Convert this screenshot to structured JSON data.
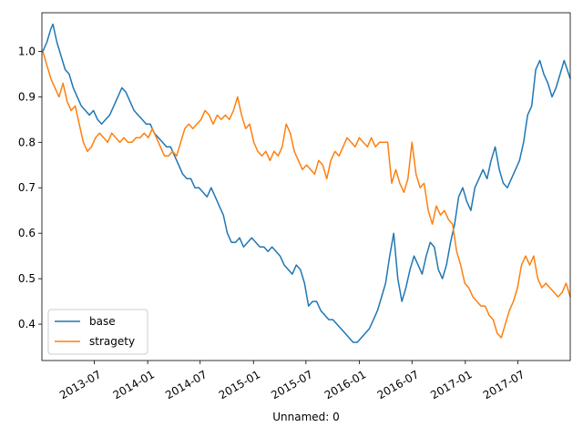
{
  "chart_data": {
    "type": "line",
    "title": "",
    "xlabel": "Unnamed: 0",
    "ylabel": "",
    "x_range": [
      "2013-01-01",
      "2017-12-29"
    ],
    "ylim": [
      0.32,
      1.085
    ],
    "grid": false,
    "legend": {
      "placement": "lower-left"
    },
    "x_ticks": [
      {
        "date": "2013-07-01",
        "label": "2013-07"
      },
      {
        "date": "2014-01-01",
        "label": "2014-01"
      },
      {
        "date": "2014-07-01",
        "label": "2014-07"
      },
      {
        "date": "2015-01-01",
        "label": "2015-01"
      },
      {
        "date": "2015-07-01",
        "label": "2015-07"
      },
      {
        "date": "2016-01-01",
        "label": "2016-01"
      },
      {
        "date": "2016-07-01",
        "label": "2016-07"
      },
      {
        "date": "2017-01-01",
        "label": "2017-01"
      },
      {
        "date": "2017-07-01",
        "label": "2017-07"
      }
    ],
    "y_ticks": [
      {
        "value": 0.4,
        "label": "0.4"
      },
      {
        "value": 0.5,
        "label": "0.5"
      },
      {
        "value": 0.6,
        "label": "0.6"
      },
      {
        "value": 0.7,
        "label": "0.7"
      },
      {
        "value": 0.8,
        "label": "0.8"
      },
      {
        "value": 0.9,
        "label": "0.9"
      },
      {
        "value": 1.0,
        "label": "1.0"
      }
    ],
    "series": [
      {
        "name": "base",
        "color": "#1f77b4",
        "points": [
          [
            "2013-01-04",
            1.0
          ],
          [
            "2013-01-18",
            1.02
          ],
          [
            "2013-02-01",
            1.05
          ],
          [
            "2013-02-08",
            1.06
          ],
          [
            "2013-02-22",
            1.02
          ],
          [
            "2013-03-08",
            0.99
          ],
          [
            "2013-03-22",
            0.96
          ],
          [
            "2013-04-05",
            0.95
          ],
          [
            "2013-04-19",
            0.92
          ],
          [
            "2013-05-03",
            0.9
          ],
          [
            "2013-05-17",
            0.88
          ],
          [
            "2013-05-31",
            0.87
          ],
          [
            "2013-06-14",
            0.86
          ],
          [
            "2013-06-28",
            0.87
          ],
          [
            "2013-07-12",
            0.85
          ],
          [
            "2013-07-26",
            0.84
          ],
          [
            "2013-08-09",
            0.85
          ],
          [
            "2013-08-23",
            0.86
          ],
          [
            "2013-09-06",
            0.88
          ],
          [
            "2013-09-20",
            0.9
          ],
          [
            "2013-10-04",
            0.92
          ],
          [
            "2013-10-18",
            0.91
          ],
          [
            "2013-11-01",
            0.89
          ],
          [
            "2013-11-15",
            0.87
          ],
          [
            "2013-11-29",
            0.86
          ],
          [
            "2013-12-13",
            0.85
          ],
          [
            "2013-12-27",
            0.84
          ],
          [
            "2014-01-10",
            0.84
          ],
          [
            "2014-01-24",
            0.82
          ],
          [
            "2014-02-07",
            0.81
          ],
          [
            "2014-02-21",
            0.8
          ],
          [
            "2014-03-07",
            0.79
          ],
          [
            "2014-03-21",
            0.79
          ],
          [
            "2014-04-04",
            0.77
          ],
          [
            "2014-04-18",
            0.75
          ],
          [
            "2014-05-02",
            0.73
          ],
          [
            "2014-05-16",
            0.72
          ],
          [
            "2014-05-30",
            0.72
          ],
          [
            "2014-06-13",
            0.7
          ],
          [
            "2014-06-27",
            0.7
          ],
          [
            "2014-07-11",
            0.69
          ],
          [
            "2014-07-25",
            0.68
          ],
          [
            "2014-08-08",
            0.7
          ],
          [
            "2014-08-22",
            0.68
          ],
          [
            "2014-09-05",
            0.66
          ],
          [
            "2014-09-19",
            0.64
          ],
          [
            "2014-10-03",
            0.6
          ],
          [
            "2014-10-17",
            0.58
          ],
          [
            "2014-10-31",
            0.58
          ],
          [
            "2014-11-14",
            0.59
          ],
          [
            "2014-11-28",
            0.57
          ],
          [
            "2014-12-12",
            0.58
          ],
          [
            "2014-12-26",
            0.59
          ],
          [
            "2015-01-09",
            0.58
          ],
          [
            "2015-01-23",
            0.57
          ],
          [
            "2015-02-06",
            0.57
          ],
          [
            "2015-02-20",
            0.56
          ],
          [
            "2015-03-06",
            0.57
          ],
          [
            "2015-03-20",
            0.56
          ],
          [
            "2015-04-03",
            0.55
          ],
          [
            "2015-04-17",
            0.53
          ],
          [
            "2015-05-01",
            0.52
          ],
          [
            "2015-05-15",
            0.51
          ],
          [
            "2015-05-29",
            0.53
          ],
          [
            "2015-06-12",
            0.52
          ],
          [
            "2015-06-26",
            0.49
          ],
          [
            "2015-07-10",
            0.44
          ],
          [
            "2015-07-24",
            0.45
          ],
          [
            "2015-08-07",
            0.45
          ],
          [
            "2015-08-21",
            0.43
          ],
          [
            "2015-09-04",
            0.42
          ],
          [
            "2015-09-18",
            0.41
          ],
          [
            "2015-10-02",
            0.41
          ],
          [
            "2015-10-16",
            0.4
          ],
          [
            "2015-10-30",
            0.39
          ],
          [
            "2015-11-13",
            0.38
          ],
          [
            "2015-11-27",
            0.37
          ],
          [
            "2015-12-11",
            0.36
          ],
          [
            "2015-12-25",
            0.36
          ],
          [
            "2016-01-08",
            0.37
          ],
          [
            "2016-01-22",
            0.38
          ],
          [
            "2016-02-05",
            0.39
          ],
          [
            "2016-02-19",
            0.41
          ],
          [
            "2016-03-04",
            0.43
          ],
          [
            "2016-03-18",
            0.46
          ],
          [
            "2016-04-01",
            0.49
          ],
          [
            "2016-04-15",
            0.55
          ],
          [
            "2016-04-29",
            0.6
          ],
          [
            "2016-05-13",
            0.5
          ],
          [
            "2016-05-27",
            0.45
          ],
          [
            "2016-06-10",
            0.48
          ],
          [
            "2016-06-24",
            0.52
          ],
          [
            "2016-07-08",
            0.55
          ],
          [
            "2016-07-22",
            0.53
          ],
          [
            "2016-08-05",
            0.51
          ],
          [
            "2016-08-19",
            0.55
          ],
          [
            "2016-09-02",
            0.58
          ],
          [
            "2016-09-16",
            0.57
          ],
          [
            "2016-09-30",
            0.52
          ],
          [
            "2016-10-14",
            0.5
          ],
          [
            "2016-10-28",
            0.53
          ],
          [
            "2016-11-11",
            0.58
          ],
          [
            "2016-11-25",
            0.62
          ],
          [
            "2016-12-09",
            0.68
          ],
          [
            "2016-12-23",
            0.7
          ],
          [
            "2017-01-06",
            0.67
          ],
          [
            "2017-01-20",
            0.65
          ],
          [
            "2017-02-03",
            0.7
          ],
          [
            "2017-02-17",
            0.72
          ],
          [
            "2017-03-03",
            0.74
          ],
          [
            "2017-03-17",
            0.72
          ],
          [
            "2017-03-31",
            0.76
          ],
          [
            "2017-04-14",
            0.79
          ],
          [
            "2017-04-28",
            0.74
          ],
          [
            "2017-05-12",
            0.71
          ],
          [
            "2017-05-26",
            0.7
          ],
          [
            "2017-06-09",
            0.72
          ],
          [
            "2017-06-23",
            0.74
          ],
          [
            "2017-07-07",
            0.76
          ],
          [
            "2017-07-21",
            0.8
          ],
          [
            "2017-08-04",
            0.86
          ],
          [
            "2017-08-18",
            0.88
          ],
          [
            "2017-09-01",
            0.96
          ],
          [
            "2017-09-15",
            0.98
          ],
          [
            "2017-09-29",
            0.95
          ],
          [
            "2017-10-13",
            0.93
          ],
          [
            "2017-10-27",
            0.9
          ],
          [
            "2017-11-10",
            0.92
          ],
          [
            "2017-11-24",
            0.95
          ],
          [
            "2017-12-08",
            0.98
          ],
          [
            "2017-12-29",
            0.94
          ]
        ]
      },
      {
        "name": "stragety",
        "color": "#ff7f0e",
        "points": [
          [
            "2013-01-04",
            1.0
          ],
          [
            "2013-01-18",
            0.97
          ],
          [
            "2013-02-01",
            0.94
          ],
          [
            "2013-02-15",
            0.92
          ],
          [
            "2013-03-01",
            0.9
          ],
          [
            "2013-03-15",
            0.93
          ],
          [
            "2013-03-29",
            0.89
          ],
          [
            "2013-04-12",
            0.87
          ],
          [
            "2013-04-26",
            0.88
          ],
          [
            "2013-05-10",
            0.84
          ],
          [
            "2013-05-24",
            0.8
          ],
          [
            "2013-06-07",
            0.78
          ],
          [
            "2013-06-21",
            0.79
          ],
          [
            "2013-07-05",
            0.81
          ],
          [
            "2013-07-19",
            0.82
          ],
          [
            "2013-08-02",
            0.81
          ],
          [
            "2013-08-16",
            0.8
          ],
          [
            "2013-08-30",
            0.82
          ],
          [
            "2013-09-13",
            0.81
          ],
          [
            "2013-09-27",
            0.8
          ],
          [
            "2013-10-11",
            0.81
          ],
          [
            "2013-10-25",
            0.8
          ],
          [
            "2013-11-08",
            0.8
          ],
          [
            "2013-11-22",
            0.81
          ],
          [
            "2013-12-06",
            0.81
          ],
          [
            "2013-12-20",
            0.82
          ],
          [
            "2014-01-03",
            0.81
          ],
          [
            "2014-01-17",
            0.83
          ],
          [
            "2014-01-31",
            0.81
          ],
          [
            "2014-02-14",
            0.79
          ],
          [
            "2014-02-28",
            0.77
          ],
          [
            "2014-03-14",
            0.77
          ],
          [
            "2014-03-28",
            0.78
          ],
          [
            "2014-04-11",
            0.77
          ],
          [
            "2014-04-25",
            0.8
          ],
          [
            "2014-05-09",
            0.83
          ],
          [
            "2014-05-23",
            0.84
          ],
          [
            "2014-06-06",
            0.83
          ],
          [
            "2014-06-20",
            0.84
          ],
          [
            "2014-07-04",
            0.85
          ],
          [
            "2014-07-18",
            0.87
          ],
          [
            "2014-08-01",
            0.86
          ],
          [
            "2014-08-15",
            0.84
          ],
          [
            "2014-08-29",
            0.86
          ],
          [
            "2014-09-12",
            0.85
          ],
          [
            "2014-09-26",
            0.86
          ],
          [
            "2014-10-10",
            0.85
          ],
          [
            "2014-10-24",
            0.87
          ],
          [
            "2014-11-07",
            0.9
          ],
          [
            "2014-11-21",
            0.86
          ],
          [
            "2014-12-05",
            0.83
          ],
          [
            "2014-12-19",
            0.84
          ],
          [
            "2015-01-02",
            0.8
          ],
          [
            "2015-01-16",
            0.78
          ],
          [
            "2015-01-30",
            0.77
          ],
          [
            "2015-02-13",
            0.78
          ],
          [
            "2015-02-27",
            0.76
          ],
          [
            "2015-03-13",
            0.78
          ],
          [
            "2015-03-27",
            0.77
          ],
          [
            "2015-04-10",
            0.79
          ],
          [
            "2015-04-24",
            0.84
          ],
          [
            "2015-05-08",
            0.82
          ],
          [
            "2015-05-22",
            0.78
          ],
          [
            "2015-06-05",
            0.76
          ],
          [
            "2015-06-19",
            0.74
          ],
          [
            "2015-07-03",
            0.75
          ],
          [
            "2015-07-17",
            0.74
          ],
          [
            "2015-07-31",
            0.73
          ],
          [
            "2015-08-14",
            0.76
          ],
          [
            "2015-08-28",
            0.75
          ],
          [
            "2015-09-11",
            0.72
          ],
          [
            "2015-09-25",
            0.76
          ],
          [
            "2015-10-09",
            0.78
          ],
          [
            "2015-10-23",
            0.77
          ],
          [
            "2015-11-06",
            0.79
          ],
          [
            "2015-11-20",
            0.81
          ],
          [
            "2015-12-04",
            0.8
          ],
          [
            "2015-12-18",
            0.79
          ],
          [
            "2016-01-01",
            0.81
          ],
          [
            "2016-01-15",
            0.8
          ],
          [
            "2016-01-29",
            0.79
          ],
          [
            "2016-02-12",
            0.81
          ],
          [
            "2016-02-26",
            0.79
          ],
          [
            "2016-03-11",
            0.8
          ],
          [
            "2016-03-25",
            0.8
          ],
          [
            "2016-04-08",
            0.8
          ],
          [
            "2016-04-22",
            0.71
          ],
          [
            "2016-05-06",
            0.74
          ],
          [
            "2016-05-20",
            0.71
          ],
          [
            "2016-06-03",
            0.69
          ],
          [
            "2016-06-17",
            0.72
          ],
          [
            "2016-07-01",
            0.8
          ],
          [
            "2016-07-15",
            0.73
          ],
          [
            "2016-07-29",
            0.7
          ],
          [
            "2016-08-12",
            0.71
          ],
          [
            "2016-08-26",
            0.65
          ],
          [
            "2016-09-09",
            0.62
          ],
          [
            "2016-09-23",
            0.66
          ],
          [
            "2016-10-07",
            0.64
          ],
          [
            "2016-10-21",
            0.65
          ],
          [
            "2016-11-04",
            0.63
          ],
          [
            "2016-11-18",
            0.62
          ],
          [
            "2016-12-02",
            0.56
          ],
          [
            "2016-12-16",
            0.53
          ],
          [
            "2016-12-30",
            0.49
          ],
          [
            "2017-01-13",
            0.48
          ],
          [
            "2017-01-27",
            0.46
          ],
          [
            "2017-02-10",
            0.45
          ],
          [
            "2017-02-24",
            0.44
          ],
          [
            "2017-03-10",
            0.44
          ],
          [
            "2017-03-24",
            0.42
          ],
          [
            "2017-04-07",
            0.41
          ],
          [
            "2017-04-21",
            0.38
          ],
          [
            "2017-05-05",
            0.37
          ],
          [
            "2017-05-19",
            0.4
          ],
          [
            "2017-06-02",
            0.43
          ],
          [
            "2017-06-16",
            0.45
          ],
          [
            "2017-06-30",
            0.48
          ],
          [
            "2017-07-14",
            0.53
          ],
          [
            "2017-07-28",
            0.55
          ],
          [
            "2017-08-11",
            0.53
          ],
          [
            "2017-08-25",
            0.55
          ],
          [
            "2017-09-08",
            0.5
          ],
          [
            "2017-09-22",
            0.48
          ],
          [
            "2017-10-06",
            0.49
          ],
          [
            "2017-10-20",
            0.48
          ],
          [
            "2017-11-03",
            0.47
          ],
          [
            "2017-11-17",
            0.46
          ],
          [
            "2017-12-01",
            0.47
          ],
          [
            "2017-12-15",
            0.49
          ],
          [
            "2017-12-29",
            0.46
          ]
        ]
      }
    ]
  }
}
